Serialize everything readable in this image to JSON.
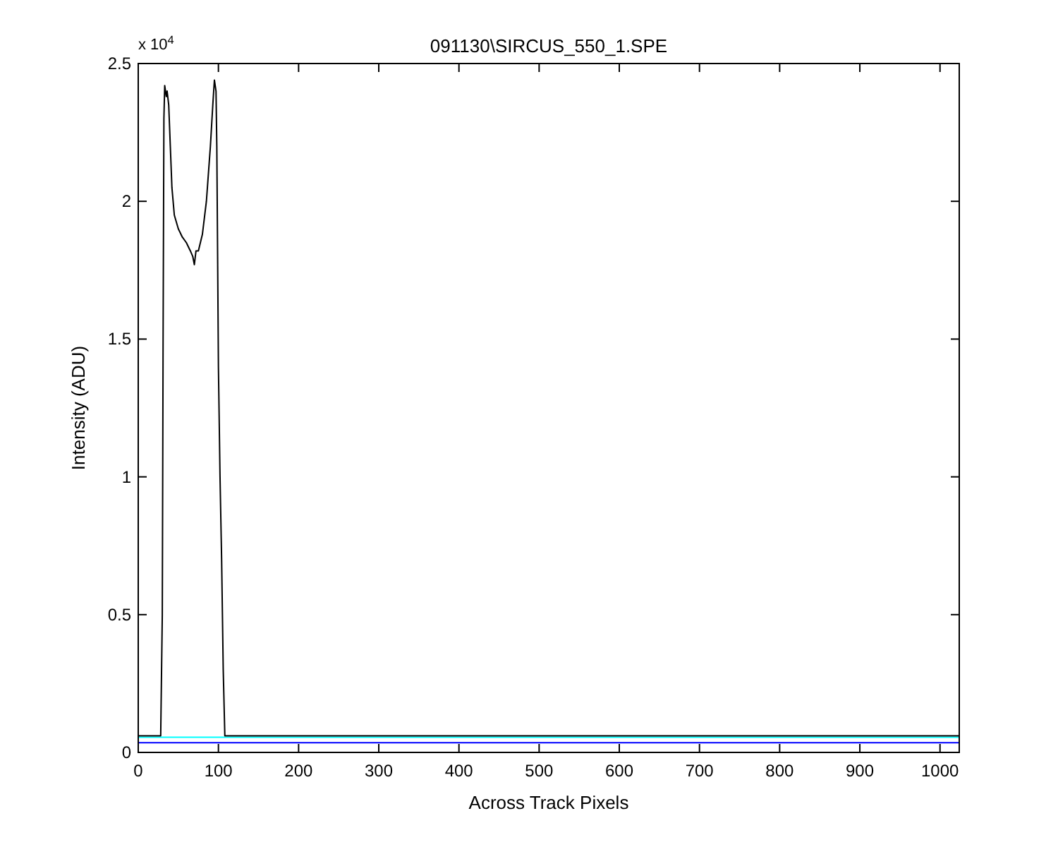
{
  "chart_data": {
    "type": "line",
    "title": "091130\\SIRCUS_550_1.SPE",
    "xlabel": "Across Track Pixels",
    "ylabel": "Intensity (ADU)",
    "annotations": [
      "x 10$^{4}$"
    ],
    "xlim": [
      0,
      1024
    ],
    "xticks": [
      0,
      100,
      200,
      300,
      400,
      500,
      600,
      700,
      800,
      900,
      1000
    ],
    "ylim": [
      0,
      2.5
    ],
    "yticks": [
      0,
      0.5,
      1,
      1.5,
      2,
      2.5
    ],
    "grid": false,
    "series": [
      {
        "color": "#00ffff",
        "x": [
          0,
          1024
        ],
        "values": [
          0.055,
          0.055
        ]
      },
      {
        "color": "#0000ff",
        "x": [
          0,
          1024
        ],
        "values": [
          0.035,
          0.035
        ]
      },
      {
        "color": "#000000",
        "x": [
          0,
          28,
          30,
          31,
          32,
          33,
          35,
          36,
          38,
          40,
          42,
          45,
          50,
          55,
          60,
          65,
          68,
          70,
          72,
          75,
          80,
          85,
          90,
          93,
          95,
          97,
          98,
          100,
          102,
          104,
          106,
          108,
          1024
        ],
        "values": [
          0.06,
          0.06,
          0.5,
          1.5,
          2.3,
          2.42,
          2.38,
          2.4,
          2.35,
          2.2,
          2.05,
          1.95,
          1.9,
          1.87,
          1.85,
          1.82,
          1.8,
          1.77,
          1.82,
          1.82,
          1.88,
          2.0,
          2.2,
          2.35,
          2.44,
          2.4,
          2.2,
          1.4,
          1.0,
          0.7,
          0.3,
          0.06,
          0.06
        ]
      }
    ]
  }
}
